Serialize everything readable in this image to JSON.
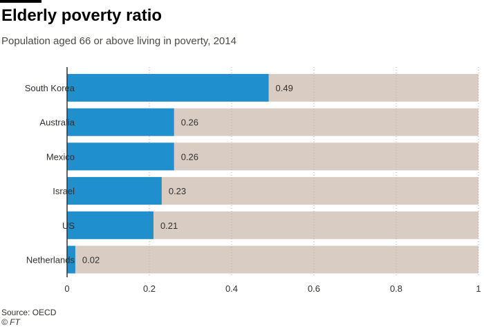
{
  "header": {
    "title": "Elderly poverty ratio",
    "subtitle": "Population aged 66 or above living in poverty, 2014"
  },
  "footer": {
    "source": "Source: OECD",
    "credit": "© FT"
  },
  "colors": {
    "bar": "#1f8fce",
    "track": "#d9ccc3",
    "grid": "#b5aaa2",
    "axis": "#33302e",
    "text": "#33302e"
  },
  "chart_data": {
    "type": "bar",
    "orientation": "horizontal",
    "categories": [
      "South Korea",
      "Australia",
      "Mexico",
      "Israel",
      "US",
      "Netherlands"
    ],
    "values": [
      0.49,
      0.26,
      0.26,
      0.23,
      0.21,
      0.02
    ],
    "value_labels": [
      "0.49",
      "0.26",
      "0.26",
      "0.23",
      "0.21",
      "0.02"
    ],
    "xlim": [
      0,
      1
    ],
    "xticks": [
      0,
      0.2,
      0.4,
      0.6,
      0.8,
      1
    ],
    "xtick_labels": [
      "0",
      "0.2",
      "0.4",
      "0.6",
      "0.8",
      "1"
    ],
    "grid": true,
    "legend": "none"
  }
}
